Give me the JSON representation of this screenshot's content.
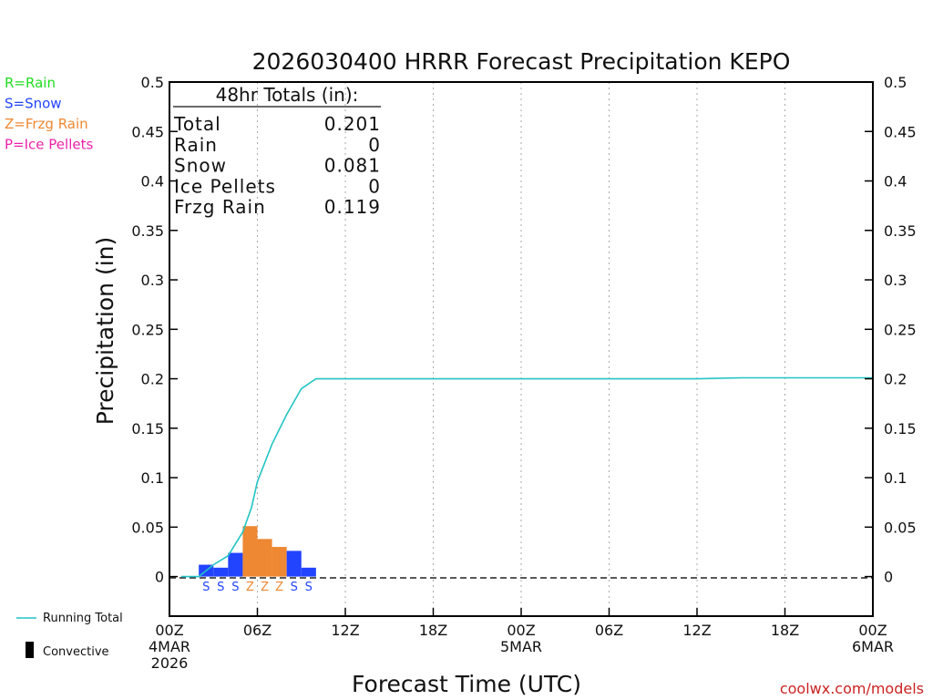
{
  "chart_data": {
    "type": "bar",
    "title": "2026030400 HRRR Forecast Precipitation KEPO",
    "xlabel": "Forecast Time (UTC)",
    "ylabel": "Precipitation (in)",
    "ylim": [
      -0.04,
      0.5
    ],
    "xlim_hours": [
      0,
      48
    ],
    "y_ticks": [
      0,
      0.05,
      0.1,
      0.15,
      0.2,
      0.25,
      0.3,
      0.35,
      0.4,
      0.45,
      0.5
    ],
    "y_tick_labels": [
      "0",
      "0.05",
      "0.1",
      "0.15",
      "0.2",
      "0.25",
      "0.3",
      "0.35",
      "0.4",
      "0.45",
      "0.5"
    ],
    "x_ticks": [
      {
        "hour": 0,
        "line1": "00Z",
        "line2": "4MAR",
        "line3": "2026"
      },
      {
        "hour": 6,
        "line1": "06Z",
        "line2": "",
        "line3": ""
      },
      {
        "hour": 12,
        "line1": "12Z",
        "line2": "",
        "line3": ""
      },
      {
        "hour": 18,
        "line1": "18Z",
        "line2": "",
        "line3": ""
      },
      {
        "hour": 24,
        "line1": "00Z",
        "line2": "5MAR",
        "line3": ""
      },
      {
        "hour": 30,
        "line1": "06Z",
        "line2": "",
        "line3": ""
      },
      {
        "hour": 36,
        "line1": "12Z",
        "line2": "",
        "line3": ""
      },
      {
        "hour": 42,
        "line1": "18Z",
        "line2": "",
        "line3": ""
      },
      {
        "hour": 48,
        "line1": "00Z",
        "line2": "6MAR",
        "line3": ""
      }
    ],
    "bars": [
      {
        "hour": 3,
        "value": 0.012,
        "type": "S"
      },
      {
        "hour": 4,
        "value": 0.009,
        "type": "S"
      },
      {
        "hour": 5,
        "value": 0.024,
        "type": "S"
      },
      {
        "hour": 6,
        "value": 0.051,
        "type": "Z"
      },
      {
        "hour": 7,
        "value": 0.038,
        "type": "Z"
      },
      {
        "hour": 8,
        "value": 0.03,
        "type": "Z"
      },
      {
        "hour": 9,
        "value": 0.026,
        "type": "S"
      },
      {
        "hour": 10,
        "value": 0.009,
        "type": "S"
      }
    ],
    "running_total": {
      "x": [
        0.8,
        2,
        3,
        4,
        5,
        5.6,
        6,
        7,
        8,
        9,
        10,
        12,
        15,
        36,
        39,
        48
      ],
      "y": [
        0,
        0,
        0.012,
        0.021,
        0.045,
        0.07,
        0.096,
        0.134,
        0.164,
        0.19,
        0.2,
        0.2,
        0.2,
        0.2,
        0.201,
        0.201
      ]
    },
    "totals_box": {
      "title": "48hr Totals (in):",
      "rows": [
        {
          "label": "Total",
          "value": "0.201"
        },
        {
          "label": "Rain",
          "value": "0"
        },
        {
          "label": "Snow",
          "value": "0.081"
        },
        {
          "label": "Ice Pellets",
          "value": "0"
        },
        {
          "label": "Frzg Rain",
          "value": "0.119"
        }
      ]
    },
    "type_legend": [
      {
        "text": "R=Rain",
        "color": "#22dd22"
      },
      {
        "text": "S=Snow",
        "color": "#2244ff"
      },
      {
        "text": "Z=Frzg Rain",
        "color": "#ee8833"
      },
      {
        "text": "P=Ice Pellets",
        "color": "#ee22aa"
      }
    ],
    "series_legend": {
      "running_total": "Running Total",
      "convective": "Convective"
    },
    "credit": "coolwx.com/models",
    "colors": {
      "snow": "#2244ff",
      "frzg": "#ee8833",
      "running_total": "#22c4c4",
      "credit": "#cc2222"
    }
  }
}
